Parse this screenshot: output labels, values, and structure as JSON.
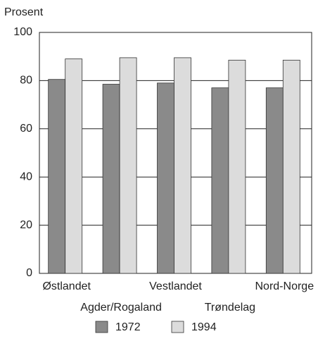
{
  "chart_data": {
    "type": "bar",
    "y_label": "Prosent",
    "categories": [
      "Østlandet",
      "Agder/Rogaland",
      "Vestlandet",
      "Trøndelag",
      "Nord-Norge"
    ],
    "series": [
      {
        "name": "1972",
        "color": "#8a8a8a",
        "values": [
          80.5,
          78.5,
          79,
          77,
          77
        ]
      },
      {
        "name": "1994",
        "color": "#dcdcdc",
        "values": [
          89,
          89.5,
          89.5,
          88.5,
          88.5
        ]
      }
    ],
    "ylim": [
      0,
      100
    ],
    "yticks": [
      0,
      20,
      40,
      60,
      80,
      100
    ],
    "grid": true
  }
}
